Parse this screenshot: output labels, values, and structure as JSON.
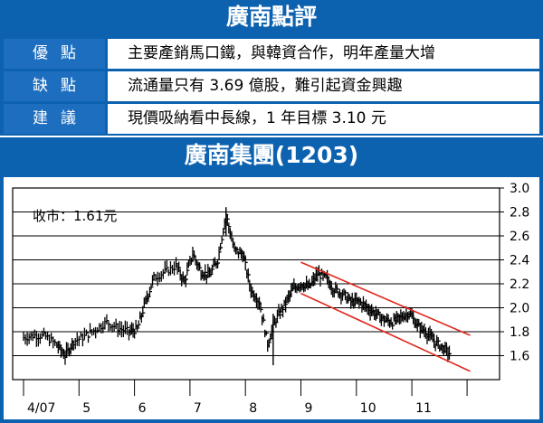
{
  "header": {
    "title": "廣南點評"
  },
  "review": {
    "rows": [
      {
        "label": "優點",
        "text": "主要產銷馬口鐵，與韓資合作，明年產量大增"
      },
      {
        "label": "缺點",
        "text": "流通量只有 3.69 億股，難引起資金興趣"
      },
      {
        "label": "建議",
        "text": "現價吸納看中長線，1 年目標 3.10 元"
      }
    ]
  },
  "stock_header": {
    "title": "廣南集團(1203)"
  },
  "chart_data": {
    "type": "candlestick",
    "annotation": "收市：1.61元",
    "x_tick_labels": [
      "4/07",
      "5",
      "6",
      "7",
      "8",
      "9",
      "10",
      "11"
    ],
    "y_tick_labels": [
      "3.0",
      "2.8",
      "2.6",
      "2.4",
      "2.2",
      "2.0",
      "1.8",
      "1.6"
    ],
    "ylim": [
      1.45,
      3.0
    ],
    "grid": "horizontal",
    "x_months": [
      4,
      5,
      6,
      7,
      8,
      9,
      10,
      11
    ],
    "close_series": [
      {
        "t": 4.0,
        "v": 1.75
      },
      {
        "t": 4.2,
        "v": 1.77
      },
      {
        "t": 4.4,
        "v": 1.76
      },
      {
        "t": 4.6,
        "v": 1.69
      },
      {
        "t": 4.75,
        "v": 1.6
      },
      {
        "t": 4.9,
        "v": 1.72
      },
      {
        "t": 5.1,
        "v": 1.76
      },
      {
        "t": 5.3,
        "v": 1.82
      },
      {
        "t": 5.5,
        "v": 1.88
      },
      {
        "t": 5.7,
        "v": 1.83
      },
      {
        "t": 5.9,
        "v": 1.8
      },
      {
        "t": 6.05,
        "v": 1.82
      },
      {
        "t": 6.2,
        "v": 2.05
      },
      {
        "t": 6.35,
        "v": 2.25
      },
      {
        "t": 6.55,
        "v": 2.3
      },
      {
        "t": 6.75,
        "v": 2.35
      },
      {
        "t": 6.9,
        "v": 2.22
      },
      {
        "t": 7.05,
        "v": 2.45
      },
      {
        "t": 7.2,
        "v": 2.3
      },
      {
        "t": 7.35,
        "v": 2.27
      },
      {
        "t": 7.5,
        "v": 2.4
      },
      {
        "t": 7.65,
        "v": 2.78
      },
      {
        "t": 7.8,
        "v": 2.48
      },
      {
        "t": 7.95,
        "v": 2.45
      },
      {
        "t": 8.1,
        "v": 2.15
      },
      {
        "t": 8.25,
        "v": 2.05
      },
      {
        "t": 8.4,
        "v": 1.7
      },
      {
        "t": 8.55,
        "v": 1.9
      },
      {
        "t": 8.7,
        "v": 2.02
      },
      {
        "t": 8.85,
        "v": 2.15
      },
      {
        "t": 9.0,
        "v": 2.2
      },
      {
        "t": 9.15,
        "v": 2.17
      },
      {
        "t": 9.3,
        "v": 2.28
      },
      {
        "t": 9.45,
        "v": 2.25
      },
      {
        "t": 9.6,
        "v": 2.15
      },
      {
        "t": 9.75,
        "v": 2.12
      },
      {
        "t": 9.9,
        "v": 2.05
      },
      {
        "t": 10.05,
        "v": 2.05
      },
      {
        "t": 10.2,
        "v": 2.0
      },
      {
        "t": 10.35,
        "v": 1.95
      },
      {
        "t": 10.5,
        "v": 1.9
      },
      {
        "t": 10.65,
        "v": 1.88
      },
      {
        "t": 10.8,
        "v": 1.92
      },
      {
        "t": 10.95,
        "v": 1.96
      },
      {
        "t": 11.1,
        "v": 1.85
      },
      {
        "t": 11.25,
        "v": 1.8
      },
      {
        "t": 11.4,
        "v": 1.72
      },
      {
        "t": 11.55,
        "v": 1.67
      },
      {
        "t": 11.7,
        "v": 1.61
      }
    ],
    "trend_channel": {
      "upper": [
        {
          "t": 9.0,
          "v": 2.38
        },
        {
          "t": 12.05,
          "v": 1.77
        }
      ],
      "lower": [
        {
          "t": 9.0,
          "v": 2.12
        },
        {
          "t": 12.05,
          "v": 1.47
        }
      ]
    },
    "colors": {
      "price": "#000000",
      "trend": "#e0281e",
      "grid": "#000000",
      "frame": "#0d62b0"
    }
  }
}
